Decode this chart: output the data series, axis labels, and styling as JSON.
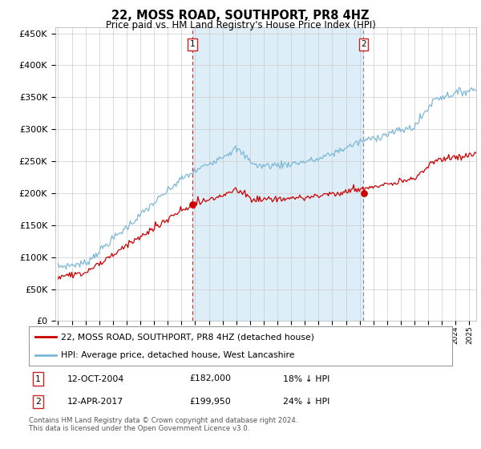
{
  "title": "22, MOSS ROAD, SOUTHPORT, PR8 4HZ",
  "subtitle": "Price paid vs. HM Land Registry's House Price Index (HPI)",
  "hpi_label": "HPI: Average price, detached house, West Lancashire",
  "price_label": "22, MOSS ROAD, SOUTHPORT, PR8 4HZ (detached house)",
  "hpi_color": "#7db8d8",
  "price_color": "#cc0000",
  "shade_color": "#ddeef8",
  "marker1_date": "12-OCT-2004",
  "marker1_price": 182000,
  "marker1_pct": "18% ↓ HPI",
  "marker1_year": 2004.78,
  "marker2_date": "12-APR-2017",
  "marker2_price": 199950,
  "marker2_pct": "24% ↓ HPI",
  "marker2_year": 2017.28,
  "ylim": [
    0,
    460000
  ],
  "xlim_start": 1994.8,
  "xlim_end": 2025.5,
  "footer": "Contains HM Land Registry data © Crown copyright and database right 2024.\nThis data is licensed under the Open Government Licence v3.0.",
  "background_color": "#ffffff",
  "grid_color": "#cccccc"
}
